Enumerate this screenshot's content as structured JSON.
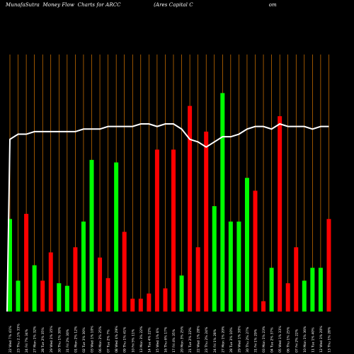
{
  "title": "MunafaSutra  Money Flow  Charts for ARCC                    (Ares Capital C                                              om",
  "colors": {
    "background": "#000000",
    "up": "#00ff00",
    "down": "#ff0000",
    "grid": "#ff8c00",
    "line": "#ffffff"
  },
  "chart_data": {
    "type": "bar",
    "categories": [
      "22 Wed 7% 41%",
      "23 Thu 2.1% 35%",
      "24 Fri 7% 34%",
      "27 Mon 1% 32%",
      "28 Tue 2% 35%",
      "29 Wed 2% 35%",
      "30 Thu 1% 30%",
      "31 Fri 2% 30%",
      "01 Mon 2% 12%",
      "02 Tue 3% 30%",
      "03 Wed 1% 10%",
      "06 Mon 2% 25%",
      "07 Tue 2% 7%",
      "08 Wed 4% 29%",
      "09 Thu 1% 41%",
      "10 Fri 5% 11%",
      "13 Mon 3% 22%",
      "14 Tue 4% 22%",
      "15 Wed 1% 6%",
      "16 Thu 6% 17%",
      "17 Fri 4% 35%",
      "20 Mon 3% 25%",
      "21 Tue 2% 22%",
      "22 Wed 1% 28%",
      "23 Thu 2% 24%",
      "24 Fri 1% 28%",
      "27 Mon 1% 20%",
      "28 Tue 3% 10%",
      "29 Wed 1% 30%",
      "30 Thu 2% 27%",
      "31 Fri 1% 29%",
      "03 Mon 1% 23%",
      "04 Tue 2% 37%",
      "05 Wed 1% 33%",
      "06 Thu 1% 25%",
      "07 Fri 2% 22%",
      "10 Mon 1% 36%",
      "11 Tue 1% 40%",
      "12 Wed 3% 20%",
      "13 Thu 1% 28%"
    ],
    "directions": [
      "up",
      "up",
      "down",
      "up",
      "down",
      "down",
      "up",
      "up",
      "down",
      "up",
      "up",
      "down",
      "down",
      "up",
      "down",
      "down",
      "down",
      "down",
      "down",
      "down",
      "down",
      "up",
      "down",
      "down",
      "down",
      "up",
      "up",
      "up",
      "up",
      "up",
      "down",
      "down",
      "up",
      "down",
      "down",
      "down",
      "up",
      "up",
      "up",
      "down"
    ],
    "values": [
      36,
      12,
      38,
      18,
      12,
      23,
      11,
      10,
      25,
      35,
      59,
      21,
      13,
      58,
      31,
      5,
      5,
      7,
      63,
      9,
      63,
      14,
      80,
      25,
      70,
      41,
      85,
      35,
      35,
      52,
      47,
      4,
      17,
      76,
      11,
      25,
      12,
      17,
      17,
      36
    ],
    "line": [
      67,
      69,
      69,
      70,
      70,
      70,
      70,
      70,
      70,
      71,
      71,
      71,
      72,
      72,
      72,
      72,
      73,
      73,
      72,
      73,
      73,
      71,
      67,
      66,
      64,
      66,
      68,
      68,
      69,
      71,
      72,
      72,
      71,
      73,
      72,
      72,
      72,
      71,
      72,
      72
    ],
    "ylim": [
      0,
      100
    ],
    "grid": true
  }
}
